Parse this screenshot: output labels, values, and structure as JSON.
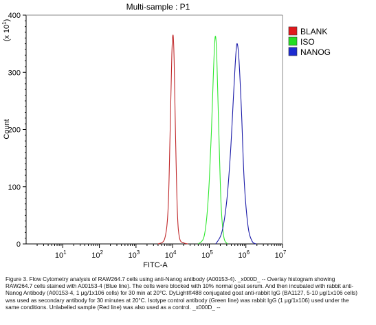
{
  "chart_data": {
    "type": "line",
    "title": "Multi-sample : P1",
    "xlabel": "FITC-A",
    "ylabel": "Count",
    "y_multiplier": "(x 10",
    "y_multiplier_exp": "1",
    "y_multiplier_close": ")",
    "x_scale": "log",
    "xlim": [
      1,
      10000000
    ],
    "ylim": [
      0,
      400
    ],
    "y_ticks": [
      0,
      100,
      200,
      300,
      400
    ],
    "x_ticks": [
      {
        "value": 10,
        "base": "10",
        "exp": "1"
      },
      {
        "value": 100,
        "base": "10",
        "exp": "2"
      },
      {
        "value": 1000,
        "base": "10",
        "exp": "3"
      },
      {
        "value": 10000,
        "base": "10",
        "exp": "4"
      },
      {
        "value": 100000,
        "base": "10",
        "exp": "5"
      },
      {
        "value": 1000000,
        "base": "10",
        "exp": "6"
      },
      {
        "value": 10000000,
        "base": "10",
        "exp": "7"
      }
    ],
    "legend_position": "top-right",
    "grid": false,
    "series": [
      {
        "name": "BLANK",
        "color": "#c0282a",
        "legend_color": "#e0191d",
        "x": [
          4000,
          6000,
          7500,
          8500,
          9500,
          10300,
          11000,
          12000,
          13500,
          15500,
          20000,
          26000
        ],
        "y": [
          0,
          8,
          60,
          190,
          330,
          365,
          320,
          190,
          55,
          10,
          2,
          0
        ]
      },
      {
        "name": "ISO",
        "color": "#2ee82e",
        "legend_color": "#22dd22",
        "x": [
          50000,
          70000,
          85000,
          100000,
          115000,
          130000,
          145000,
          160000,
          180000,
          210000,
          250000,
          320000
        ],
        "y": [
          0,
          10,
          45,
          110,
          200,
          300,
          362,
          330,
          210,
          70,
          12,
          0
        ]
      },
      {
        "name": "NANOG",
        "color": "#1a1aa8",
        "legend_color": "#1c2ad0",
        "x": [
          150000,
          220000,
          300000,
          380000,
          460000,
          530000,
          580000,
          650000,
          760000,
          900000,
          1150000,
          1500000,
          1900000
        ],
        "y": [
          0,
          20,
          75,
          160,
          260,
          330,
          350,
          320,
          230,
          110,
          30,
          4,
          0
        ]
      }
    ]
  },
  "caption": "Figure 3. Flow Cytometry analysis of RAW264.7 cells using anti-Nanog antibody (A00153-4). _x000D_ -- Overlay histogram showing RAW264.7 cells stained with A00153-4 (Blue line). The cells were blocked with 10% normal goat serum. And then incubated with rabbit anti-Nanog Antibody (A00153-4, 1 μg/1x106 cells) for 30 min at 20°C. DyLight®488 conjugated goat anti-rabbit IgG (BA1127, 5-10 μg/1x106 cells) was used as secondary antibody for 30 minutes at 20°C. Isotype control antibody (Green line) was rabbit IgG (1 μg/1x106) used under the same conditions. Unlabelled sample (Red line) was also used as a control. _x000D_ --"
}
